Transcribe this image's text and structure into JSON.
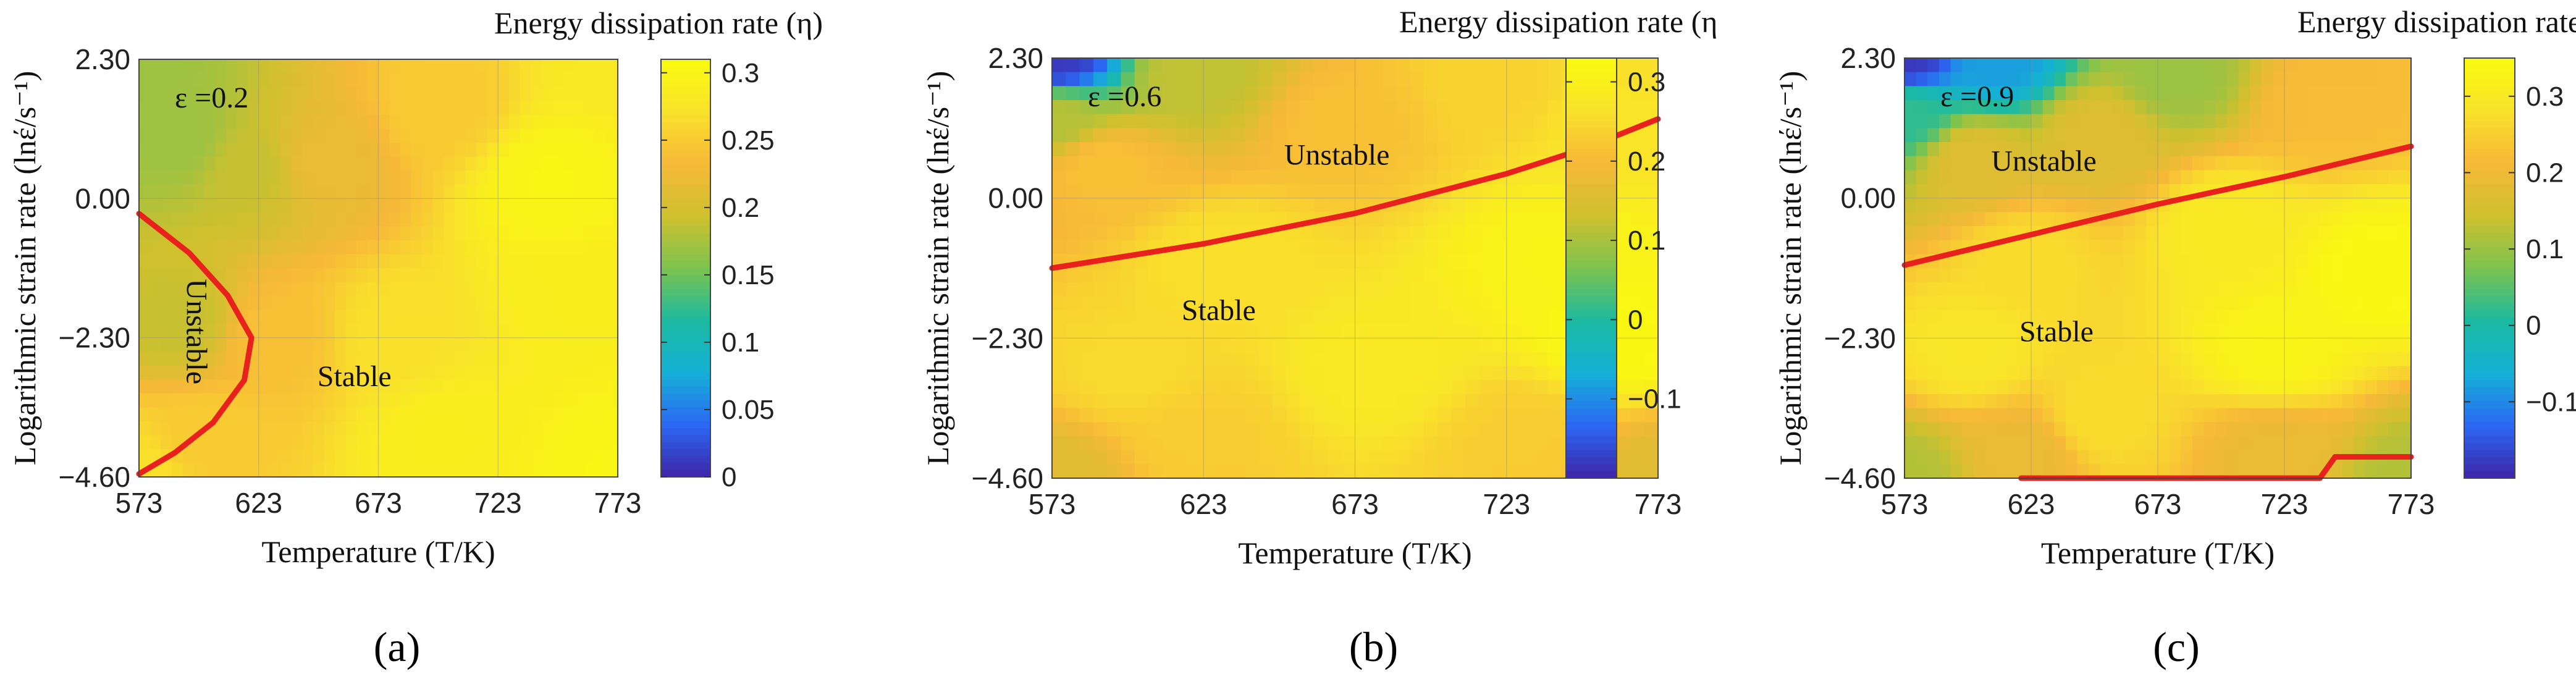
{
  "figure": {
    "panels": [
      "(a)",
      "(b)",
      "(c)"
    ]
  },
  "colors": {
    "cmap": [
      "#3e26a8",
      "#2b68f4",
      "#15b0d6",
      "#1bbaa0",
      "#7dc34e",
      "#cfc02e",
      "#f7b838",
      "#f9e22a",
      "#f9fb0e"
    ],
    "instability_curve": "#e8211c",
    "grid": "#8a8a8a",
    "frame": "#444444"
  },
  "chart_data": [
    {
      "type": "heatmap",
      "panel_label": "(a)",
      "strain_annotation": "ε =0.2",
      "colorbar_title": "Energy dissipation rate (η)",
      "xlabel": "Temperature (T/K)",
      "ylabel": "Logarithmic  strain rate (lnέ/s⁻¹)",
      "x_ticks": [
        "573",
        "623",
        "673",
        "723",
        "773"
      ],
      "y_ticks": [
        "2.30",
        "0.00",
        "−2.30",
        "−4.60"
      ],
      "xlim": [
        573,
        773
      ],
      "ylim": [
        -4.6,
        2.3
      ],
      "clim": [
        0,
        0.31
      ],
      "colorbar_ticks": [
        "0.3",
        "0.25",
        "0.2",
        "0.15",
        "0.1",
        "0.05",
        "0"
      ],
      "colorbar_values": [
        0.3,
        0.25,
        0.2,
        0.15,
        0.1,
        0.05,
        0
      ],
      "eta_points": [
        {
          "T": 573,
          "lnE": 2.3,
          "eta": 0.17
        },
        {
          "T": 773,
          "lnE": 2.3,
          "eta": 0.28
        },
        {
          "T": 573,
          "lnE": -4.6,
          "eta": 0.27
        },
        {
          "T": 773,
          "lnE": -4.6,
          "eta": 0.3
        },
        {
          "T": 590,
          "lnE": 1.0,
          "eta": 0.17
        },
        {
          "T": 620,
          "lnE": 0.5,
          "eta": 0.19
        },
        {
          "T": 650,
          "lnE": 0.6,
          "eta": 0.22
        },
        {
          "T": 700,
          "lnE": 1.5,
          "eta": 0.25
        },
        {
          "T": 745,
          "lnE": 0.3,
          "eta": 0.3
        },
        {
          "T": 590,
          "lnE": -2.0,
          "eta": 0.19
        },
        {
          "T": 630,
          "lnE": -2.3,
          "eta": 0.24
        },
        {
          "T": 680,
          "lnE": -2.3,
          "eta": 0.27
        },
        {
          "T": 760,
          "lnE": -1.5,
          "eta": 0.29
        },
        {
          "T": 600,
          "lnE": -4.0,
          "eta": 0.25
        },
        {
          "T": 700,
          "lnE": -4.0,
          "eta": 0.29
        }
      ],
      "instability_boundary": [
        {
          "T": 573,
          "lnE": -0.25
        },
        {
          "T": 594,
          "lnE": -0.9
        },
        {
          "T": 610,
          "lnE": -1.6
        },
        {
          "T": 620,
          "lnE": -2.3
        },
        {
          "T": 617,
          "lnE": -3.0
        },
        {
          "T": 604,
          "lnE": -3.7
        },
        {
          "T": 588,
          "lnE": -4.2
        },
        {
          "T": 573,
          "lnE": -4.55
        }
      ],
      "region_labels": [
        {
          "text": "Unstable",
          "T": 593,
          "lnE": -2.2,
          "rotate": 90
        },
        {
          "text": "Stable",
          "T": 663,
          "lnE": -3.1,
          "rotate": 0
        }
      ]
    },
    {
      "type": "heatmap",
      "panel_label": "(b)",
      "strain_annotation": "ε =0.6",
      "colorbar_title": "Energy dissipation rate (η)",
      "xlabel": "Temperature (T/K)",
      "ylabel": "Logarithmic  strain rate (lnέ/s⁻¹)",
      "x_ticks": [
        "573",
        "623",
        "673",
        "723",
        "773"
      ],
      "y_ticks": [
        "2.30",
        "0.00",
        "−2.30",
        "−4.60"
      ],
      "xlim": [
        573,
        773
      ],
      "ylim": [
        -4.6,
        2.3
      ],
      "clim": [
        -0.2,
        0.33
      ],
      "colorbar_ticks": [
        "0.3",
        "0.2",
        "0.1",
        "0",
        "−0.1"
      ],
      "colorbar_values": [
        0.3,
        0.2,
        0.1,
        0,
        -0.1
      ],
      "eta_points": [
        {
          "T": 573,
          "lnE": 2.3,
          "eta": -0.18
        },
        {
          "T": 773,
          "lnE": 2.3,
          "eta": 0.26
        },
        {
          "T": 573,
          "lnE": -4.6,
          "eta": 0.16
        },
        {
          "T": 773,
          "lnE": -4.6,
          "eta": 0.16
        },
        {
          "T": 573,
          "lnE": 1.3,
          "eta": 0.11
        },
        {
          "T": 620,
          "lnE": 2.0,
          "eta": 0.12
        },
        {
          "T": 590,
          "lnE": 0.5,
          "eta": 0.21
        },
        {
          "T": 670,
          "lnE": 1.2,
          "eta": 0.21
        },
        {
          "T": 720,
          "lnE": 1.8,
          "eta": 0.24
        },
        {
          "T": 760,
          "lnE": 1.3,
          "eta": 0.27
        },
        {
          "T": 630,
          "lnE": -1.0,
          "eta": 0.26
        },
        {
          "T": 740,
          "lnE": -1.0,
          "eta": 0.31
        },
        {
          "T": 760,
          "lnE": -2.3,
          "eta": 0.32
        },
        {
          "T": 680,
          "lnE": -2.8,
          "eta": 0.28
        },
        {
          "T": 600,
          "lnE": -2.8,
          "eta": 0.25
        },
        {
          "T": 620,
          "lnE": -3.9,
          "eta": 0.23
        },
        {
          "T": 730,
          "lnE": -3.9,
          "eta": 0.23
        }
      ],
      "instability_boundary": [
        {
          "T": 573,
          "lnE": -1.15
        },
        {
          "T": 623,
          "lnE": -0.75
        },
        {
          "T": 673,
          "lnE": -0.25
        },
        {
          "T": 723,
          "lnE": 0.4
        },
        {
          "T": 748,
          "lnE": 0.8
        },
        {
          "T": 773,
          "lnE": 1.3
        }
      ],
      "region_labels": [
        {
          "text": "Unstable",
          "T": 667,
          "lnE": 0.55,
          "rotate": 0
        },
        {
          "text": "Stable",
          "T": 628,
          "lnE": -2.0,
          "rotate": 0
        }
      ]
    },
    {
      "type": "heatmap",
      "panel_label": "(c)",
      "strain_annotation": "ε =0.9",
      "colorbar_title": "Energy dissipation rate (η)",
      "xlabel": "Temperature (T/K)",
      "ylabel": "Logarithmic  strain rate (lnέ/s⁻¹)",
      "x_ticks": [
        "573",
        "623",
        "673",
        "723",
        "773"
      ],
      "y_ticks": [
        "2.30",
        "0.00",
        "−2.30",
        "−4.60"
      ],
      "xlim": [
        573,
        773
      ],
      "ylim": [
        -4.6,
        2.3
      ],
      "clim": [
        -0.2,
        0.35
      ],
      "colorbar_ticks": [
        "0.3",
        "0.2",
        "0.1",
        "0",
        "−0.1"
      ],
      "colorbar_values": [
        0.3,
        0.2,
        0.1,
        0,
        -0.1
      ],
      "eta_points": [
        {
          "T": 573,
          "lnE": 2.3,
          "eta": -0.18
        },
        {
          "T": 773,
          "lnE": 2.3,
          "eta": 0.22
        },
        {
          "T": 573,
          "lnE": -4.6,
          "eta": 0.12
        },
        {
          "T": 773,
          "lnE": -4.6,
          "eta": 0.12
        },
        {
          "T": 610,
          "lnE": 2.3,
          "eta": -0.08
        },
        {
          "T": 573,
          "lnE": 1.4,
          "eta": 0.02
        },
        {
          "T": 680,
          "lnE": 2.0,
          "eta": 0.1
        },
        {
          "T": 600,
          "lnE": 0.6,
          "eta": 0.17
        },
        {
          "T": 650,
          "lnE": 1.0,
          "eta": 0.17
        },
        {
          "T": 740,
          "lnE": 1.5,
          "eta": 0.22
        },
        {
          "T": 620,
          "lnE": -1.0,
          "eta": 0.27
        },
        {
          "T": 700,
          "lnE": -0.5,
          "eta": 0.3
        },
        {
          "T": 760,
          "lnE": -1.2,
          "eta": 0.34
        },
        {
          "T": 600,
          "lnE": -2.5,
          "eta": 0.29
        },
        {
          "T": 720,
          "lnE": -2.5,
          "eta": 0.33
        },
        {
          "T": 650,
          "lnE": -3.6,
          "eta": 0.27
        },
        {
          "T": 620,
          "lnE": -4.2,
          "eta": 0.19
        },
        {
          "T": 720,
          "lnE": -4.2,
          "eta": 0.19
        }
      ],
      "instability_boundary": [
        {
          "T": 573,
          "lnE": -1.1
        },
        {
          "T": 623,
          "lnE": -0.6
        },
        {
          "T": 673,
          "lnE": -0.1
        },
        {
          "T": 723,
          "lnE": 0.35
        },
        {
          "T": 773,
          "lnE": 0.85
        }
      ],
      "instability_boundary_2": [
        {
          "T": 619,
          "lnE": -4.6
        },
        {
          "T": 737,
          "lnE": -4.6
        },
        {
          "T": 743,
          "lnE": -4.25
        },
        {
          "T": 773,
          "lnE": -4.25
        }
      ],
      "region_labels": [
        {
          "text": "Unstable",
          "T": 628,
          "lnE": 0.45,
          "rotate": 0
        },
        {
          "text": "Stable",
          "T": 633,
          "lnE": -2.35,
          "rotate": 0
        }
      ]
    }
  ]
}
